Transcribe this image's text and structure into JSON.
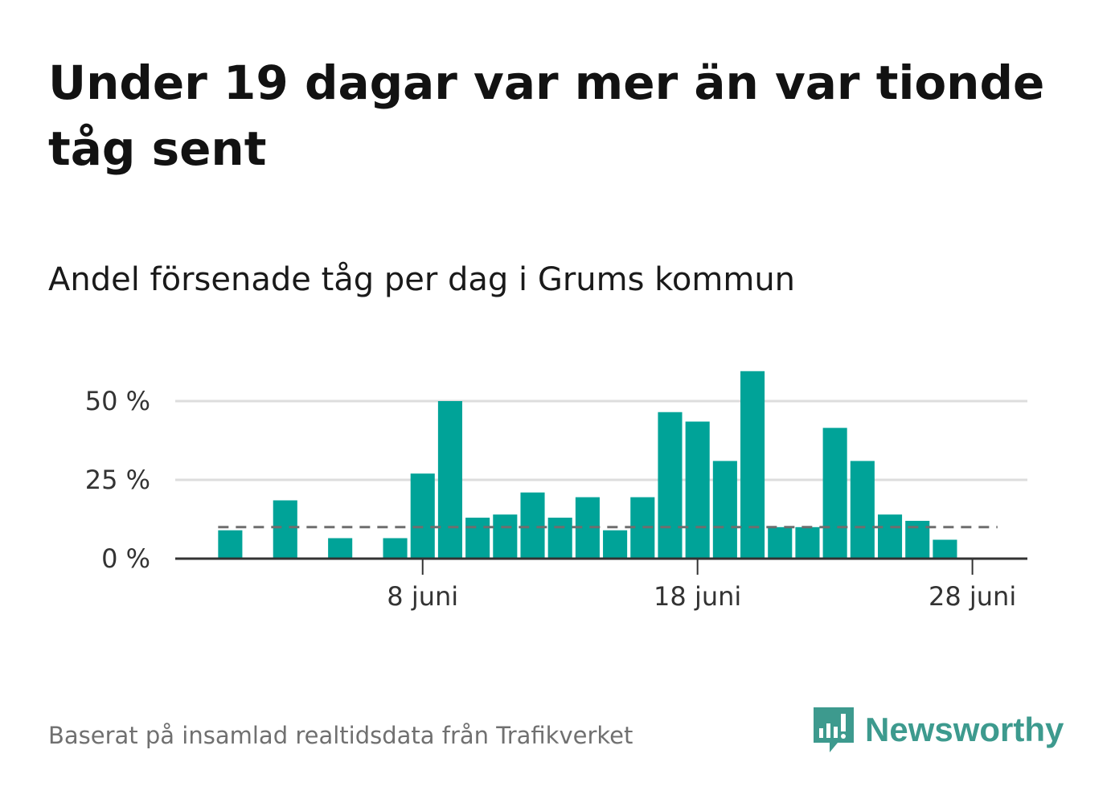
{
  "title": "Under 19 dagar var mer än var tionde tåg sent",
  "subtitle": "Andel försenade tåg per dag i Grums kommun",
  "source": "Baserat på insamlad realtidsdata från Trafikverket",
  "brand": {
    "name": "Newsworthy",
    "icon": "newsworthy-logo-icon",
    "color": "#3d9a8e"
  },
  "colors": {
    "bar": "#00a398",
    "reference_line": "#6e6e6e",
    "grid": "#dddddd",
    "axis": "#333333"
  },
  "chart_data": {
    "type": "bar",
    "x_unit": "day of June",
    "x": [
      1,
      2,
      3,
      4,
      5,
      6,
      7,
      8,
      9,
      10,
      11,
      12,
      13,
      14,
      15,
      16,
      17,
      18,
      19,
      20,
      21,
      22,
      23,
      24,
      25,
      26,
      27,
      28
    ],
    "values": [
      9,
      null,
      18.5,
      null,
      6.5,
      null,
      6.5,
      27,
      50,
      13,
      14,
      21,
      13,
      19.5,
      9,
      19.5,
      46.5,
      43.5,
      31,
      59.5,
      10,
      10,
      41.5,
      31,
      14,
      12,
      6,
      null
    ],
    "reference_line": {
      "value": 10,
      "style": "dashed"
    },
    "x_ticks": [
      {
        "x": 8,
        "label": "8 juni"
      },
      {
        "x": 18,
        "label": "18 juni"
      },
      {
        "x": 28,
        "label": "28 juni"
      }
    ],
    "y_ticks": [
      {
        "y": 0,
        "label": "0 %"
      },
      {
        "y": 25,
        "label": "25 %"
      },
      {
        "y": 50,
        "label": "50 %"
      }
    ],
    "xlim": [
      -1,
      30
    ],
    "ylim": [
      0,
      62
    ],
    "grid": true,
    "legend": "none"
  }
}
